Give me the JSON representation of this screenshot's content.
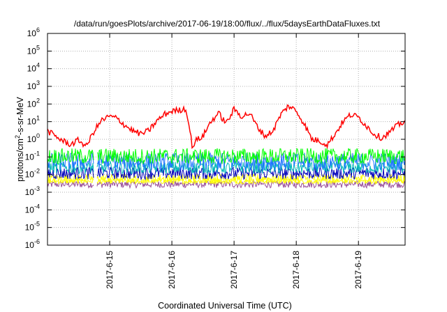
{
  "chart_data": {
    "type": "line",
    "title": "/data/run/goesPlots/archive/2017-06-19/18:00/flux/../flux/5daysEarthDataFluxes.txt",
    "xlabel": "Coordinated Universal Time (UTC)",
    "ylabel": "protons/cm²-s-sr-MeV",
    "ylabel_parts": {
      "pre": "protons/cm",
      "sup": "2",
      "post": "-s-sr-MeV"
    },
    "yscale": "log",
    "ylim": [
      1e-06,
      1000000.0
    ],
    "y_ticks": [
      {
        "base": "10",
        "exp": "-6"
      },
      {
        "base": "10",
        "exp": "-5"
      },
      {
        "base": "10",
        "exp": "-4"
      },
      {
        "base": "10",
        "exp": "-3"
      },
      {
        "base": "10",
        "exp": "-2"
      },
      {
        "base": "10",
        "exp": "-1"
      },
      {
        "base": "10",
        "exp": "0"
      },
      {
        "base": "10",
        "exp": "1"
      },
      {
        "base": "10",
        "exp": "2"
      },
      {
        "base": "10",
        "exp": "3"
      },
      {
        "base": "10",
        "exp": "4"
      },
      {
        "base": "10",
        "exp": "5"
      },
      {
        "base": "10",
        "exp": "6"
      }
    ],
    "x_ticks": [
      "2017-6-15",
      "2017-6-16",
      "2017-6-17",
      "2017-6-18",
      "2017-6-19"
    ],
    "xlim": [
      "2017-06-14 00:00",
      "2017-06-19 18:00"
    ],
    "grid": true,
    "data_gap": [
      "2017-06-14 18:00",
      "2017-06-14 19:00"
    ],
    "series": [
      {
        "color": "#ff0000",
        "x": [
          "2017-06-14 00:00",
          "2017-06-14 03:00",
          "2017-06-14 06:00",
          "2017-06-14 09:00",
          "2017-06-14 12:00",
          "2017-06-14 15:00",
          "2017-06-14 18:00",
          "2017-06-14 21:00",
          "2017-06-15 00:00",
          "2017-06-15 03:00",
          "2017-06-15 06:00",
          "2017-06-15 09:00",
          "2017-06-15 12:00",
          "2017-06-15 15:00",
          "2017-06-15 18:00",
          "2017-06-15 21:00",
          "2017-06-16 00:00",
          "2017-06-16 03:00",
          "2017-06-16 05:00",
          "2017-06-16 06:00",
          "2017-06-16 08:00",
          "2017-06-16 09:00",
          "2017-06-16 12:00",
          "2017-06-16 15:00",
          "2017-06-16 18:00",
          "2017-06-16 21:00",
          "2017-06-17 00:00",
          "2017-06-17 03:00",
          "2017-06-17 06:00",
          "2017-06-17 09:00",
          "2017-06-17 12:00",
          "2017-06-17 15:00",
          "2017-06-17 18:00",
          "2017-06-17 21:00",
          "2017-06-18 00:00",
          "2017-06-18 03:00",
          "2017-06-18 06:00",
          "2017-06-18 09:00",
          "2017-06-18 12:00",
          "2017-06-18 15:00",
          "2017-06-18 18:00",
          "2017-06-18 21:00",
          "2017-06-19 00:00",
          "2017-06-19 03:00",
          "2017-06-19 06:00",
          "2017-06-19 09:00",
          "2017-06-19 12:00",
          "2017-06-19 15:00",
          "2017-06-19 18:00"
        ],
        "y": [
          3,
          1.5,
          0.8,
          0.5,
          0.9,
          0.4,
          3,
          12,
          20,
          15,
          6,
          3,
          2,
          3,
          10,
          25,
          40,
          45,
          55,
          25,
          0.3,
          0.8,
          1.5,
          10,
          30,
          8,
          50,
          20,
          30,
          5,
          1.5,
          3,
          25,
          80,
          40,
          8,
          1,
          0.8,
          0.5,
          2,
          10,
          25,
          18,
          6,
          2,
          1.2,
          2.5,
          6,
          11
        ]
      },
      {
        "color": "#00ff00",
        "level": 0.11,
        "spread": 0.45
      },
      {
        "color": "#1e74ff",
        "level": 0.055,
        "spread": 0.5
      },
      {
        "color": "#00b8b8",
        "level": 0.025,
        "spread": 0.35
      },
      {
        "color": "#0000bb",
        "level": 0.012,
        "spread": 0.35
      },
      {
        "color": "#ffff00",
        "level": 0.006,
        "spread": 0.25
      },
      {
        "color": "#ffff00",
        "level": 0.0042,
        "spread": 0.15
      },
      {
        "color": "#994d99",
        "level": 0.0028,
        "spread": 0.2
      }
    ]
  }
}
